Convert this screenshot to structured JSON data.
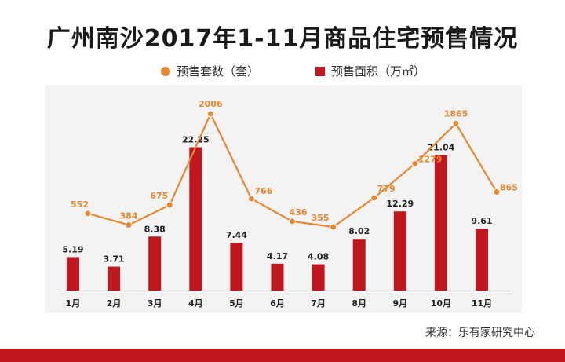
{
  "title": "广州南沙2017年1-11月商品住宅预售情况",
  "legend": {
    "line_label": "预售套数（套）",
    "bar_label": "预售面积（万㎡）"
  },
  "source": "来源：乐有家研究中心",
  "colors": {
    "line": "#e8872e",
    "bar": "#c0161e",
    "bottom_bar": "#c0161e"
  },
  "chart_data": {
    "type": "bar+line",
    "categories": [
      "1月",
      "2月",
      "3月",
      "4月",
      "5月",
      "6月",
      "7月",
      "8月",
      "9月",
      "10月",
      "11月"
    ],
    "series": [
      {
        "name": "预售面积（万㎡）",
        "type": "bar",
        "values": [
          5.19,
          3.71,
          8.38,
          22.25,
          7.44,
          4.17,
          4.08,
          8.02,
          12.29,
          21.04,
          9.61
        ]
      },
      {
        "name": "预售套数（套）",
        "type": "line",
        "values": [
          552,
          384,
          675,
          2006,
          766,
          436,
          355,
          779,
          1279,
          1865,
          865
        ]
      }
    ]
  }
}
